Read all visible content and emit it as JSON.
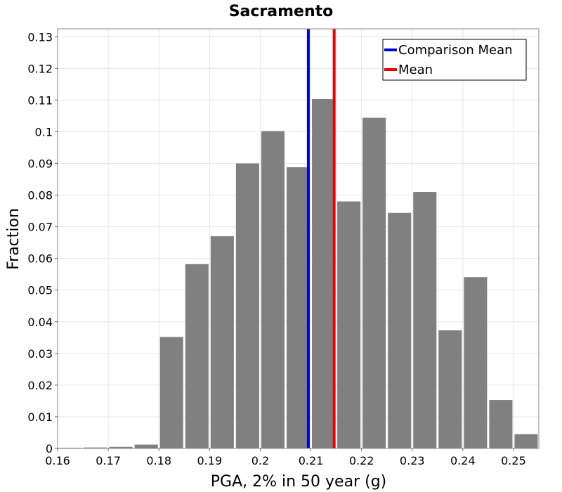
{
  "chart_data": {
    "type": "bar",
    "title": "Sacramento",
    "xlabel": "PGA, 2% in 50 year (g)",
    "ylabel": "Fraction",
    "xlim": [
      0.16,
      0.255
    ],
    "ylim": [
      0,
      0.1325
    ],
    "bin_width": 0.005,
    "x_ticks": [
      "0.16",
      "0.17",
      "0.18",
      "0.19",
      "0.2",
      "0.21",
      "0.22",
      "0.23",
      "0.24",
      "0.25"
    ],
    "y_ticks": [
      "0",
      "0.01",
      "0.02",
      "0.03",
      "0.04",
      "0.05",
      "0.06",
      "0.07",
      "0.08",
      "0.09",
      "0.1",
      "0.11",
      "0.12",
      "0.13"
    ],
    "grid": true,
    "bar_color": "#808080",
    "bins": [
      {
        "x0": 0.16,
        "value": 0.0002
      },
      {
        "x0": 0.165,
        "value": 0.0003
      },
      {
        "x0": 0.17,
        "value": 0.0005
      },
      {
        "x0": 0.175,
        "value": 0.0012
      },
      {
        "x0": 0.18,
        "value": 0.0352
      },
      {
        "x0": 0.185,
        "value": 0.0582
      },
      {
        "x0": 0.19,
        "value": 0.067
      },
      {
        "x0": 0.195,
        "value": 0.09
      },
      {
        "x0": 0.2,
        "value": 0.1002
      },
      {
        "x0": 0.205,
        "value": 0.0888
      },
      {
        "x0": 0.21,
        "value": 0.1103
      },
      {
        "x0": 0.215,
        "value": 0.078
      },
      {
        "x0": 0.22,
        "value": 0.1044
      },
      {
        "x0": 0.225,
        "value": 0.0744
      },
      {
        "x0": 0.23,
        "value": 0.081
      },
      {
        "x0": 0.235,
        "value": 0.0373
      },
      {
        "x0": 0.24,
        "value": 0.0541
      },
      {
        "x0": 0.245,
        "value": 0.0153
      },
      {
        "x0": 0.25,
        "value": 0.0045
      }
    ],
    "reference_lines": [
      {
        "name": "Comparison Mean",
        "x": 0.2095,
        "color": "#0000dd"
      },
      {
        "name": "Mean",
        "x": 0.2146,
        "color": "#ee0000"
      }
    ],
    "legend_position": "top-right"
  }
}
